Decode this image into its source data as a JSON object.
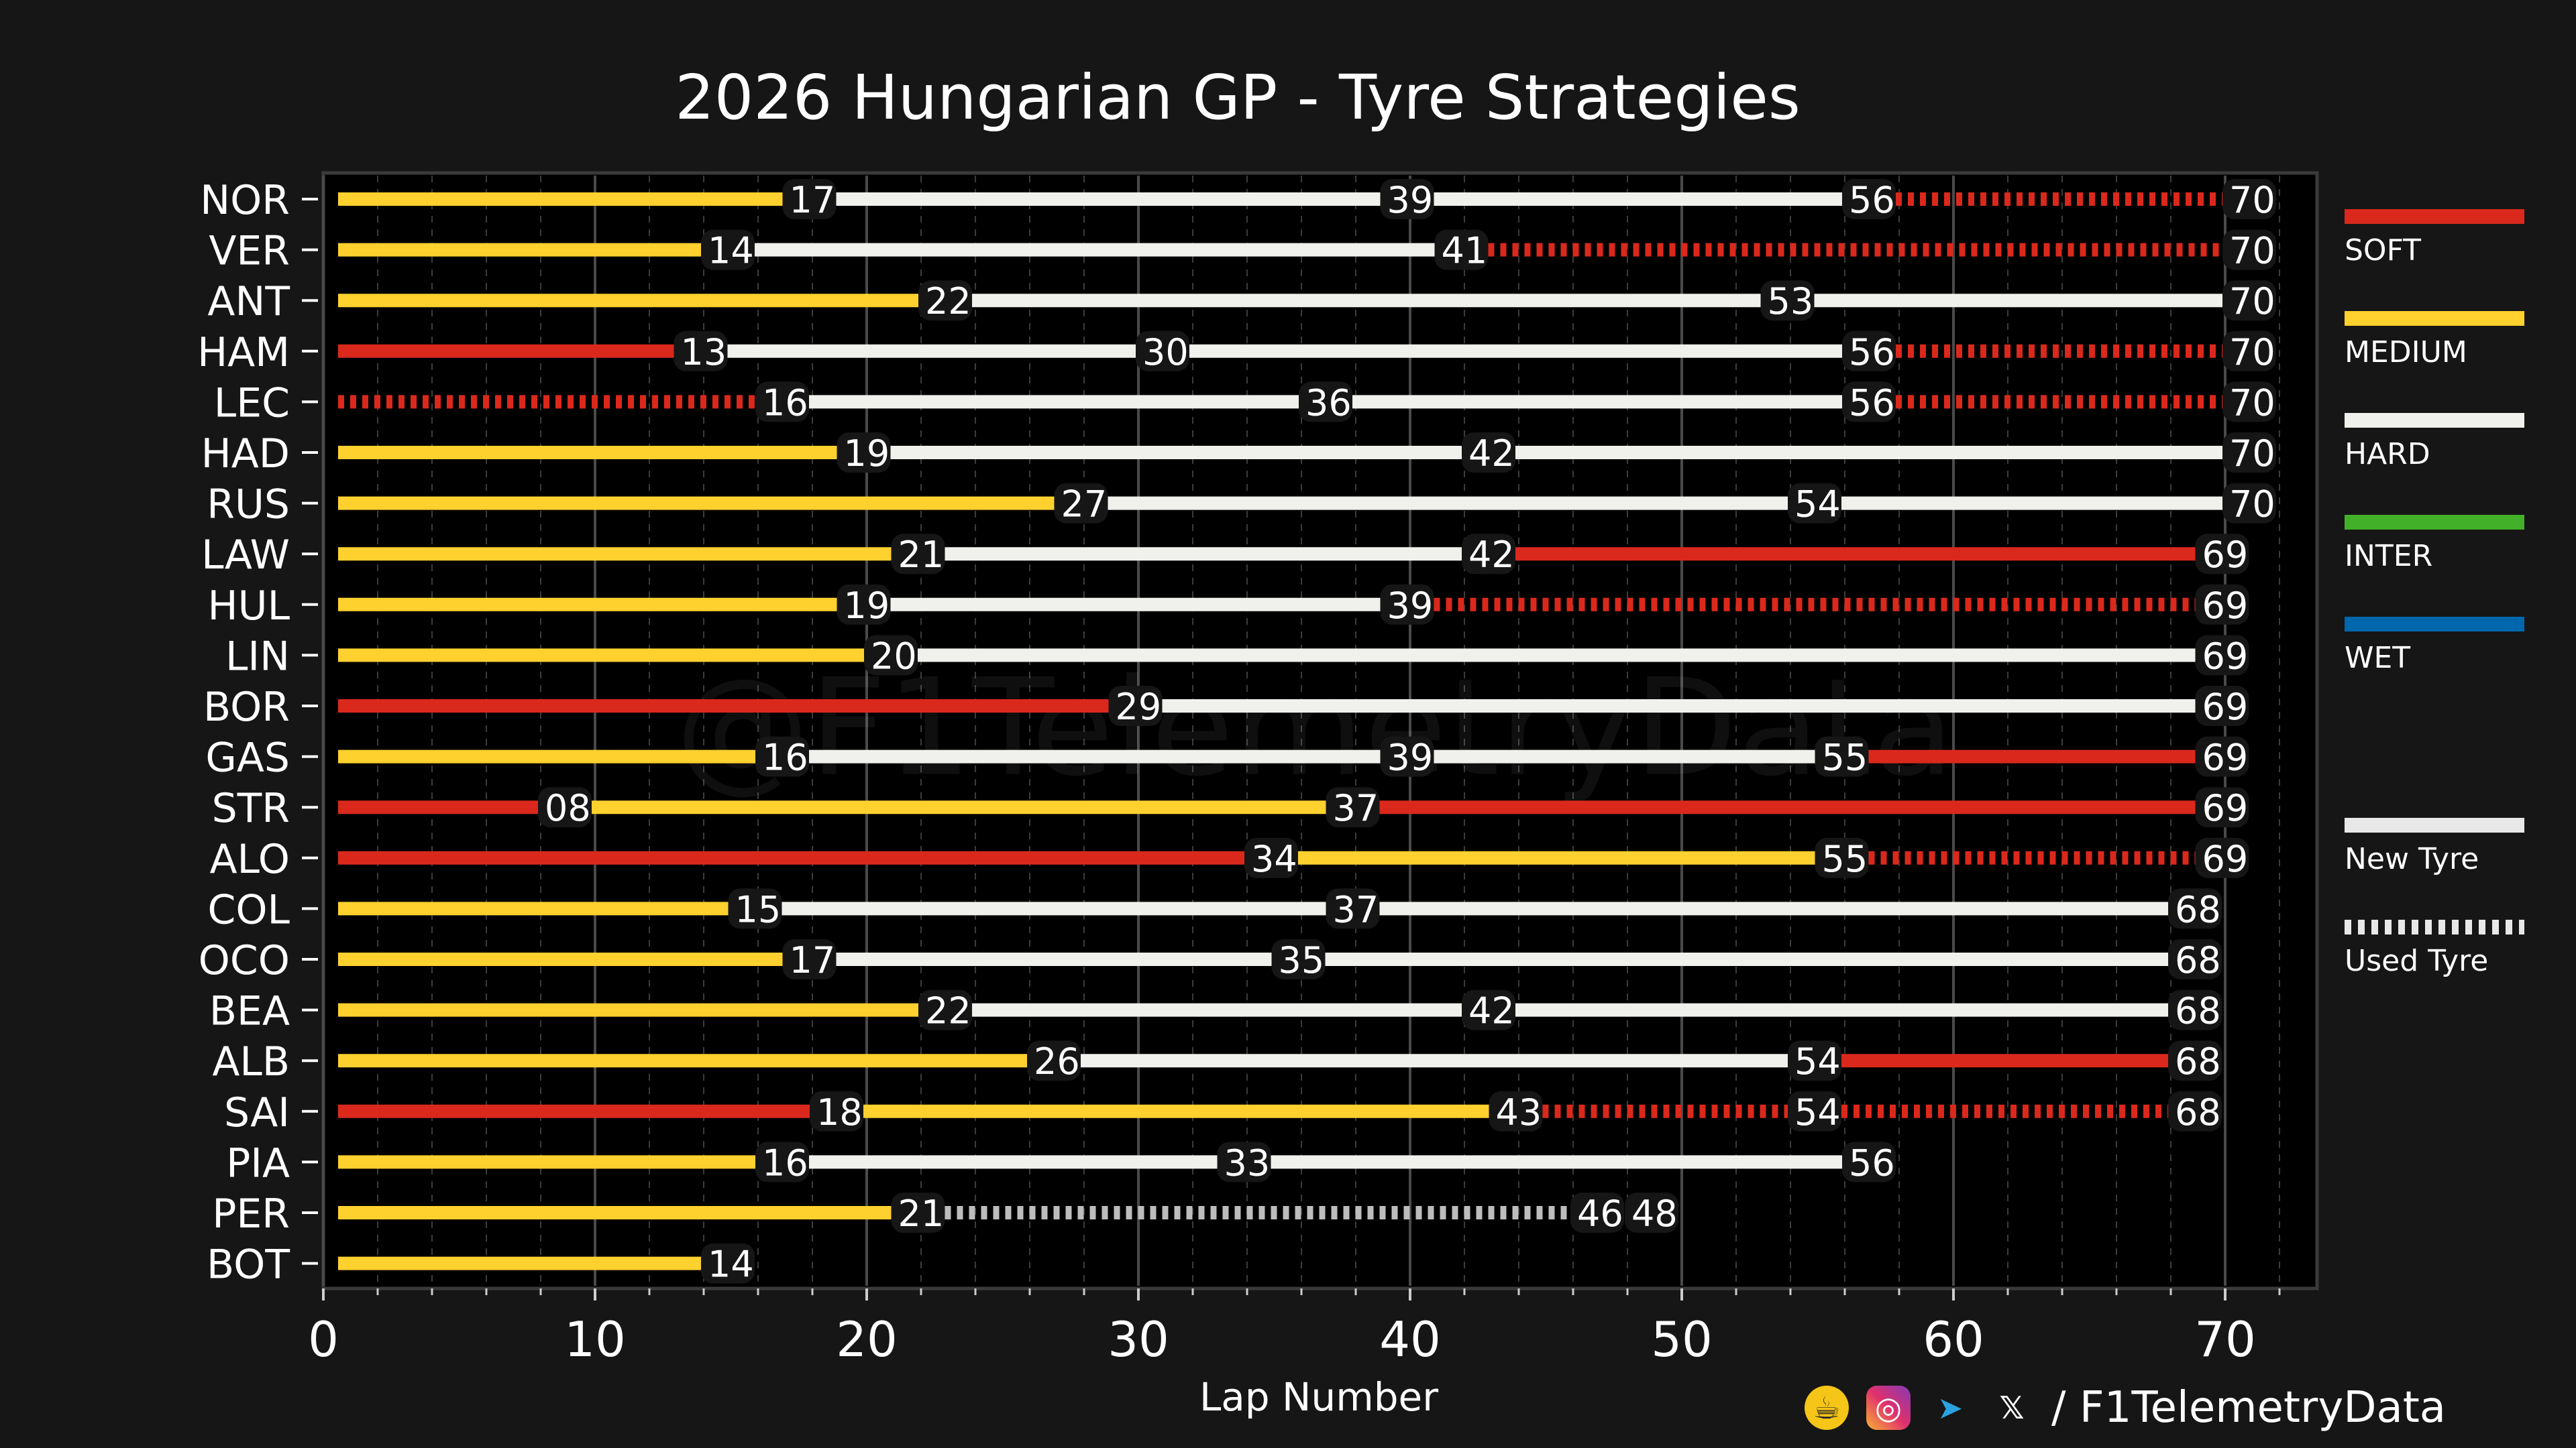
{
  "chart_data": {
    "type": "bar",
    "orientation": "horizontal-stacked-stints",
    "title": "2026 Hungarian GP - Tyre Strategies",
    "xlabel": "Lap Number",
    "ylabel": "",
    "xlim": [
      0,
      73
    ],
    "xticks": [
      0,
      10,
      20,
      30,
      40,
      50,
      60,
      70
    ],
    "grid": true,
    "watermark": "@F1TelemetryData",
    "compound_colors": {
      "SOFT": "#da291c",
      "MEDIUM": "#ffd12e",
      "HARD": "#f0f0ec",
      "INTER": "#43b02a",
      "WET": "#0067ad"
    },
    "drivers": [
      {
        "driver": "NOR",
        "stints": [
          {
            "compound": "MEDIUM",
            "new": true,
            "end": 17
          },
          {
            "compound": "HARD",
            "new": true,
            "end": 39
          },
          {
            "compound": "HARD",
            "new": true,
            "end": 56
          },
          {
            "compound": "SOFT",
            "new": false,
            "end": 70
          }
        ]
      },
      {
        "driver": "VER",
        "stints": [
          {
            "compound": "MEDIUM",
            "new": true,
            "end": 14
          },
          {
            "compound": "HARD",
            "new": true,
            "end": 41
          },
          {
            "compound": "SOFT",
            "new": false,
            "end": 70
          }
        ]
      },
      {
        "driver": "ANT",
        "stints": [
          {
            "compound": "MEDIUM",
            "new": true,
            "end": 22
          },
          {
            "compound": "HARD",
            "new": true,
            "end": 53
          },
          {
            "compound": "HARD",
            "new": true,
            "end": 70
          }
        ]
      },
      {
        "driver": "HAM",
        "stints": [
          {
            "compound": "SOFT",
            "new": true,
            "end": 13
          },
          {
            "compound": "HARD",
            "new": true,
            "end": 30
          },
          {
            "compound": "HARD",
            "new": true,
            "end": 56
          },
          {
            "compound": "SOFT",
            "new": false,
            "end": 70
          }
        ]
      },
      {
        "driver": "LEC",
        "stints": [
          {
            "compound": "SOFT",
            "new": false,
            "end": 16
          },
          {
            "compound": "HARD",
            "new": true,
            "end": 36
          },
          {
            "compound": "HARD",
            "new": true,
            "end": 56
          },
          {
            "compound": "SOFT",
            "new": false,
            "end": 70
          }
        ]
      },
      {
        "driver": "HAD",
        "stints": [
          {
            "compound": "MEDIUM",
            "new": true,
            "end": 19
          },
          {
            "compound": "HARD",
            "new": true,
            "end": 42
          },
          {
            "compound": "HARD",
            "new": true,
            "end": 70
          }
        ]
      },
      {
        "driver": "RUS",
        "stints": [
          {
            "compound": "MEDIUM",
            "new": true,
            "end": 27
          },
          {
            "compound": "HARD",
            "new": true,
            "end": 54
          },
          {
            "compound": "HARD",
            "new": true,
            "end": 70
          }
        ]
      },
      {
        "driver": "LAW",
        "stints": [
          {
            "compound": "MEDIUM",
            "new": true,
            "end": 21
          },
          {
            "compound": "HARD",
            "new": true,
            "end": 42
          },
          {
            "compound": "SOFT",
            "new": true,
            "end": 69
          }
        ]
      },
      {
        "driver": "HUL",
        "stints": [
          {
            "compound": "MEDIUM",
            "new": true,
            "end": 19
          },
          {
            "compound": "HARD",
            "new": true,
            "end": 39
          },
          {
            "compound": "SOFT",
            "new": false,
            "end": 69
          }
        ]
      },
      {
        "driver": "LIN",
        "stints": [
          {
            "compound": "MEDIUM",
            "new": true,
            "end": 20
          },
          {
            "compound": "HARD",
            "new": true,
            "end": 69
          }
        ]
      },
      {
        "driver": "BOR",
        "stints": [
          {
            "compound": "SOFT",
            "new": true,
            "end": 29
          },
          {
            "compound": "HARD",
            "new": true,
            "end": 69
          }
        ]
      },
      {
        "driver": "GAS",
        "stints": [
          {
            "compound": "MEDIUM",
            "new": true,
            "end": 16
          },
          {
            "compound": "HARD",
            "new": true,
            "end": 39
          },
          {
            "compound": "HARD",
            "new": true,
            "end": 55
          },
          {
            "compound": "SOFT",
            "new": true,
            "end": 69
          }
        ]
      },
      {
        "driver": "STR",
        "stints": [
          {
            "compound": "SOFT",
            "new": true,
            "end": 8,
            "label": "08"
          },
          {
            "compound": "MEDIUM",
            "new": true,
            "end": 37
          },
          {
            "compound": "SOFT",
            "new": true,
            "end": 69
          }
        ]
      },
      {
        "driver": "ALO",
        "stints": [
          {
            "compound": "SOFT",
            "new": true,
            "end": 34
          },
          {
            "compound": "MEDIUM",
            "new": true,
            "end": 55
          },
          {
            "compound": "SOFT",
            "new": false,
            "end": 69
          }
        ]
      },
      {
        "driver": "COL",
        "stints": [
          {
            "compound": "MEDIUM",
            "new": true,
            "end": 15
          },
          {
            "compound": "HARD",
            "new": true,
            "end": 37
          },
          {
            "compound": "HARD",
            "new": true,
            "end": 68
          }
        ]
      },
      {
        "driver": "OCO",
        "stints": [
          {
            "compound": "MEDIUM",
            "new": true,
            "end": 17
          },
          {
            "compound": "HARD",
            "new": true,
            "end": 35
          },
          {
            "compound": "HARD",
            "new": true,
            "end": 68
          }
        ]
      },
      {
        "driver": "BEA",
        "stints": [
          {
            "compound": "MEDIUM",
            "new": true,
            "end": 22
          },
          {
            "compound": "HARD",
            "new": true,
            "end": 42
          },
          {
            "compound": "HARD",
            "new": true,
            "end": 68
          }
        ]
      },
      {
        "driver": "ALB",
        "stints": [
          {
            "compound": "MEDIUM",
            "new": true,
            "end": 26
          },
          {
            "compound": "HARD",
            "new": true,
            "end": 54
          },
          {
            "compound": "SOFT",
            "new": true,
            "end": 68
          }
        ]
      },
      {
        "driver": "SAI",
        "stints": [
          {
            "compound": "SOFT",
            "new": true,
            "end": 18
          },
          {
            "compound": "MEDIUM",
            "new": true,
            "end": 43
          },
          {
            "compound": "SOFT",
            "new": false,
            "end": 54
          },
          {
            "compound": "SOFT",
            "new": false,
            "end": 68
          }
        ]
      },
      {
        "driver": "PIA",
        "stints": [
          {
            "compound": "MEDIUM",
            "new": true,
            "end": 16
          },
          {
            "compound": "HARD",
            "new": true,
            "end": 33
          },
          {
            "compound": "HARD",
            "new": true,
            "end": 56
          }
        ]
      },
      {
        "driver": "PER",
        "stints": [
          {
            "compound": "MEDIUM",
            "new": true,
            "end": 21
          },
          {
            "compound": "HARD",
            "new": false,
            "end": 46
          },
          {
            "compound": "HARD",
            "new": false,
            "end": 48,
            "hidden": true
          }
        ]
      },
      {
        "driver": "BOT",
        "stints": [
          {
            "compound": "MEDIUM",
            "new": true,
            "end": 14
          }
        ]
      }
    ]
  },
  "legend": [
    {
      "label": "SOFT",
      "color": "#da291c",
      "style": "solid"
    },
    {
      "label": "MEDIUM",
      "color": "#ffd12e",
      "style": "solid"
    },
    {
      "label": "HARD",
      "color": "#f0f0ec",
      "style": "solid"
    },
    {
      "label": "INTER",
      "color": "#43b02a",
      "style": "solid"
    },
    {
      "label": "WET",
      "color": "#0067ad",
      "style": "solid"
    },
    {
      "label": "New Tyre",
      "color": "#e8e8e8",
      "style": "solid"
    },
    {
      "label": "Used Tyre",
      "color": "#e8e8e8",
      "style": "dashed"
    }
  ],
  "footer": {
    "handle": "/ F1TelemetryData",
    "icons": [
      "coffee-icon",
      "instagram-icon",
      "telegram-icon",
      "x-icon"
    ]
  }
}
